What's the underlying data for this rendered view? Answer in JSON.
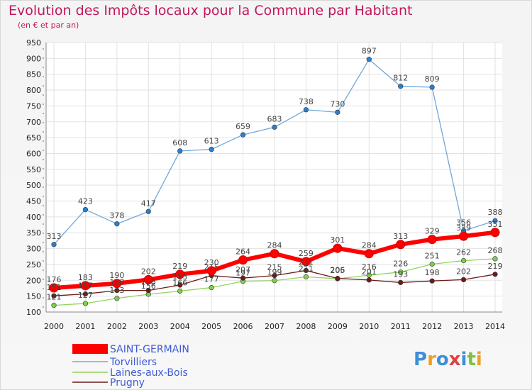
{
  "title": "Evolution des Impôts locaux pour la Commune par Habitant",
  "subtitle": "(en € et par an)",
  "logo_text": "Proxiti",
  "chart_data": {
    "type": "line",
    "title": "Evolution des Impôts locaux pour la Commune par Habitant",
    "subtitle": "(en € et par an)",
    "x": [
      2000,
      2001,
      2002,
      2003,
      2004,
      2005,
      2006,
      2007,
      2008,
      2009,
      2010,
      2011,
      2012,
      2013,
      2014
    ],
    "ylim": [
      100,
      950
    ],
    "yticks": [
      100,
      150,
      200,
      250,
      300,
      350,
      400,
      450,
      500,
      550,
      600,
      650,
      700,
      750,
      800,
      850,
      900,
      950
    ],
    "grid": true,
    "legend_position": "bottom-left",
    "series": [
      {
        "name": "SAINT-GERMAIN",
        "color": "#ff0000",
        "values": [
          176,
          183,
          190,
          202,
          219,
          230,
          264,
          284,
          259,
          301,
          284,
          313,
          329,
          339,
          351
        ]
      },
      {
        "name": "Torvilliers",
        "color": "#6fa8dc",
        "values": [
          313,
          423,
          378,
          417,
          608,
          613,
          659,
          683,
          738,
          730,
          897,
          812,
          809,
          356,
          388
        ]
      },
      {
        "name": "Laines-aux-Bois",
        "color": "#93d35c",
        "values": [
          121,
          127,
          143,
          156,
          166,
          177,
          197,
          199,
          211,
          205,
          216,
          226,
          251,
          262,
          268
        ]
      },
      {
        "name": "Prugny",
        "color": "#6d1a1a",
        "values": [
          151,
          157,
          168,
          168,
          185,
          215,
          207,
          215,
          231,
          206,
          201,
          193,
          198,
          202,
          219
        ]
      }
    ]
  }
}
